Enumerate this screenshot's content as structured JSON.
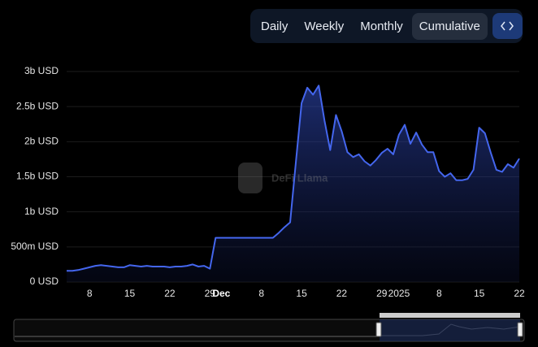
{
  "controls": {
    "buttons": [
      "Daily",
      "Weekly",
      "Monthly",
      "Cumulative"
    ],
    "active": 3
  },
  "watermark": "DeFi Llama",
  "chart_data": {
    "type": "area",
    "color": "#4466ee",
    "grid": true,
    "categories": [
      null,
      null,
      null,
      null,
      "8",
      null,
      null,
      null,
      null,
      null,
      null,
      "15",
      null,
      null,
      null,
      null,
      null,
      null,
      "22",
      null,
      null,
      null,
      null,
      null,
      null,
      "29",
      null,
      "Dec",
      null,
      null,
      null,
      null,
      null,
      null,
      "8",
      null,
      null,
      null,
      null,
      null,
      null,
      "15",
      null,
      null,
      null,
      null,
      null,
      null,
      "22",
      null,
      null,
      null,
      null,
      null,
      null,
      "29",
      null,
      null,
      "2025",
      null,
      null,
      null,
      null,
      null,
      null,
      "8",
      null,
      null,
      null,
      null,
      null,
      null,
      "15",
      null,
      null,
      null,
      null,
      null,
      null,
      "22"
    ],
    "values": [
      160000000,
      160000000,
      170000000,
      190000000,
      210000000,
      230000000,
      240000000,
      230000000,
      220000000,
      210000000,
      210000000,
      240000000,
      230000000,
      220000000,
      230000000,
      220000000,
      220000000,
      220000000,
      210000000,
      220000000,
      220000000,
      230000000,
      250000000,
      220000000,
      230000000,
      190000000,
      630000000,
      630000000,
      630000000,
      630000000,
      630000000,
      630000000,
      630000000,
      630000000,
      630000000,
      630000000,
      630000000,
      700000000,
      780000000,
      850000000,
      1700000000,
      2550000000,
      2770000000,
      2670000000,
      2800000000,
      2300000000,
      1880000000,
      2380000000,
      2150000000,
      1850000000,
      1780000000,
      1820000000,
      1720000000,
      1660000000,
      1740000000,
      1840000000,
      1900000000,
      1820000000,
      2100000000,
      2240000000,
      1970000000,
      2130000000,
      1960000000,
      1850000000,
      1850000000,
      1580000000,
      1500000000,
      1550000000,
      1450000000,
      1450000000,
      1470000000,
      1600000000,
      2200000000,
      2120000000,
      1850000000,
      1600000000,
      1570000000,
      1680000000,
      1630000000,
      1760000000
    ],
    "ylim": [
      0,
      3000000000
    ],
    "yticks": [
      {
        "value": 0,
        "label": "0 USD"
      },
      {
        "value": 500000000,
        "label": "500m USD"
      },
      {
        "value": 1000000000,
        "label": "1b USD"
      },
      {
        "value": 1500000000,
        "label": "1.5b USD"
      },
      {
        "value": 2000000000,
        "label": "2b USD"
      },
      {
        "value": 2500000000,
        "label": "2.5b USD"
      },
      {
        "value": 3000000000,
        "label": "3b USD"
      }
    ]
  }
}
